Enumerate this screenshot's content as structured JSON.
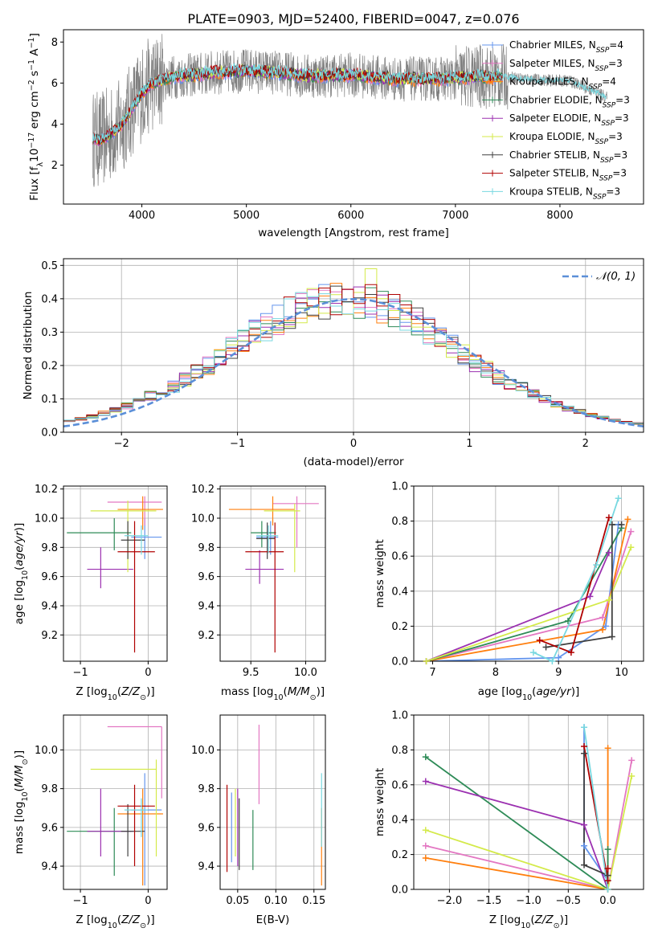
{
  "figure_title": "PLATE=0903, MJD=52400, FIBERID=0047, z=0.076",
  "models": [
    {
      "name": "Chabrier MILES",
      "nssp": "N",
      "sub": "SSP",
      "count": "=4",
      "color": "#6495ED"
    },
    {
      "name": "Salpeter MILES",
      "nssp": "N",
      "sub": "SSP",
      "count": "=3",
      "color": "#e377c2"
    },
    {
      "name": "Kroupa MILES",
      "nssp": "N",
      "sub": "SSP",
      "count": "=4",
      "color": "#ff7f0e"
    },
    {
      "name": "Chabrier ELODIE",
      "nssp": "N",
      "sub": "SSP",
      "count": "=3",
      "color": "#2e8b57"
    },
    {
      "name": "Salpeter ELODIE",
      "nssp": "N",
      "sub": "SSP",
      "count": "=3",
      "color": "#9b30b0"
    },
    {
      "name": "Kroupa ELODIE",
      "nssp": "N",
      "sub": "SSP",
      "count": "=3",
      "color": "#d4ea4a"
    },
    {
      "name": "Chabrier STELIB",
      "nssp": "N",
      "sub": "SSP",
      "count": "=3",
      "color": "#404040"
    },
    {
      "name": "Salpeter STELIB",
      "nssp": "N",
      "sub": "SSP",
      "count": "=3",
      "color": "#b00000"
    },
    {
      "name": "Kroupa STELIB",
      "nssp": "N",
      "sub": "SSP",
      "count": "=3",
      "color": "#78d8e0"
    }
  ],
  "chart_data": [
    {
      "id": "spectrum",
      "type": "line",
      "xlabel": "wavelength [Angstrom, rest frame]",
      "ylabel": "Flux [fλ10⁻¹⁷ erg cm⁻² s⁻¹ A⁻¹]",
      "xlim": [
        3250,
        8800
      ],
      "ylim": [
        0.1,
        8.6
      ],
      "xticks": [
        4000,
        5000,
        6000,
        7000,
        8000
      ],
      "yticks": [
        2,
        4,
        6,
        8
      ],
      "data_color": "#808080",
      "continuum": {
        "x": [
          3530,
          3600,
          3700,
          3800,
          3900,
          4000,
          4100,
          4300,
          4500,
          4700,
          5000,
          5300,
          5600,
          6000,
          6400,
          6800,
          7200,
          7500,
          7800,
          8100,
          8500
        ],
        "y": [
          3.3,
          3.2,
          3.5,
          3.9,
          4.7,
          5.5,
          6.0,
          6.3,
          6.4,
          6.5,
          6.6,
          6.5,
          6.35,
          6.4,
          6.2,
          6.2,
          6.3,
          6.3,
          6.15,
          6.1,
          5.2
        ]
      },
      "model_range": [
        3530,
        7450
      ],
      "data_range": [
        3530,
        8450
      ]
    },
    {
      "id": "residuals",
      "type": "line",
      "xlabel": "(data-model)/error",
      "ylabel": "Normed distribution",
      "xlim": [
        -2.5,
        2.5
      ],
      "ylim": [
        0,
        0.52
      ],
      "xticks": [
        -2,
        -1,
        0,
        1,
        2
      ],
      "yticks": [
        0.0,
        0.1,
        0.2,
        0.3,
        0.4,
        0.5
      ],
      "legend": "𝒩(0, 1)",
      "legend_color": "#5b8fd8",
      "bin_width": 0.1
    },
    {
      "id": "age_vs_Z",
      "type": "scatter",
      "xlabel": "Z [log10(Z/Z⊙)]",
      "ylabel": "age  [log10(age/yr)]",
      "xlim": [
        -1.25,
        0.28
      ],
      "ylim": [
        9.02,
        10.22
      ],
      "xticks": [
        -1,
        0
      ],
      "yticks": [
        9.2,
        9.4,
        9.6,
        9.8,
        10.0,
        10.2
      ],
      "points": [
        {
          "m": 0,
          "x": -0.05,
          "y": 9.87,
          "ex": [
            -0.25,
            0.2
          ],
          "ey": [
            9.72,
            10.0
          ]
        },
        {
          "m": 1,
          "x": -0.05,
          "y": 10.11,
          "ex": [
            -0.6,
            0.2
          ],
          "ey": [
            9.95,
            10.15
          ]
        },
        {
          "m": 2,
          "x": -0.08,
          "y": 10.06,
          "ex": [
            -0.45,
            0.22
          ],
          "ey": [
            9.92,
            10.15
          ]
        },
        {
          "m": 3,
          "x": -0.5,
          "y": 9.9,
          "ex": [
            -1.2,
            -0.25
          ],
          "ey": [
            9.78,
            10.0
          ]
        },
        {
          "m": 4,
          "x": -0.7,
          "y": 9.65,
          "ex": [
            -0.9,
            -0.22
          ],
          "ey": [
            9.52,
            9.8
          ]
        },
        {
          "m": 5,
          "x": -0.3,
          "y": 10.05,
          "ex": [
            -0.85,
            0.12
          ],
          "ey": [
            9.63,
            10.12
          ]
        },
        {
          "m": 6,
          "x": -0.3,
          "y": 9.85,
          "ex": [
            -0.4,
            -0.05
          ],
          "ey": [
            9.72,
            9.98
          ]
        },
        {
          "m": 7,
          "x": -0.2,
          "y": 9.77,
          "ex": [
            -0.45,
            0.1
          ],
          "ey": [
            9.08,
            9.98
          ]
        },
        {
          "m": 8,
          "x": -0.1,
          "y": 9.88,
          "ex": [
            -0.35,
            0.0
          ],
          "ey": [
            9.75,
            9.95
          ]
        }
      ]
    },
    {
      "id": "age_vs_mass",
      "type": "scatter",
      "xlabel": "mass [log10(M/M⊙)]",
      "ylabel": "",
      "xlim": [
        9.22,
        10.18
      ],
      "ylim": [
        9.02,
        10.22
      ],
      "xticks": [
        9.5,
        10.0
      ],
      "yticks": [
        9.2,
        9.4,
        9.6,
        9.8,
        10.0,
        10.2
      ],
      "points": [
        {
          "m": 0,
          "x": 9.68,
          "y": 9.87,
          "ex": [
            9.55,
            9.75
          ],
          "ey": [
            9.75,
            9.98
          ]
        },
        {
          "m": 1,
          "x": 9.92,
          "y": 10.1,
          "ex": [
            9.7,
            10.12
          ],
          "ey": [
            9.8,
            10.15
          ]
        },
        {
          "m": 2,
          "x": 9.7,
          "y": 10.06,
          "ex": [
            9.3,
            9.9
          ],
          "ey": [
            9.95,
            10.15
          ]
        },
        {
          "m": 3,
          "x": 9.6,
          "y": 9.9,
          "ex": [
            9.5,
            9.73
          ],
          "ey": [
            9.8,
            9.98
          ]
        },
        {
          "m": 4,
          "x": 9.58,
          "y": 9.65,
          "ex": [
            9.45,
            9.8
          ],
          "ey": [
            9.55,
            9.78
          ]
        },
        {
          "m": 5,
          "x": 9.9,
          "y": 10.05,
          "ex": [
            9.62,
            9.95
          ],
          "ey": [
            9.63,
            10.1
          ]
        },
        {
          "m": 6,
          "x": 9.65,
          "y": 9.86,
          "ex": [
            9.55,
            9.72
          ],
          "ey": [
            9.72,
            9.97
          ]
        },
        {
          "m": 7,
          "x": 9.72,
          "y": 9.77,
          "ex": [
            9.45,
            9.8
          ],
          "ey": [
            9.08,
            9.97
          ]
        },
        {
          "m": 8,
          "x": 9.66,
          "y": 9.88,
          "ex": [
            9.55,
            9.75
          ],
          "ey": [
            9.76,
            9.95
          ]
        }
      ]
    },
    {
      "id": "weight_vs_age",
      "type": "line",
      "xlabel": "age  [log10(age/yr)]",
      "ylabel": "mass weight",
      "xlim": [
        6.7,
        10.35
      ],
      "ylim": [
        0,
        1
      ],
      "xticks": [
        7,
        8,
        9,
        10
      ],
      "yticks": [
        0.0,
        0.2,
        0.4,
        0.6,
        0.8,
        1.0
      ],
      "series": [
        {
          "m": 0,
          "x": [
            6.9,
            9.0,
            9.75,
            9.95
          ],
          "y": [
            0.0,
            0.02,
            0.2,
            0.78
          ]
        },
        {
          "m": 1,
          "x": [
            6.9,
            9.7,
            10.15
          ],
          "y": [
            0.0,
            0.25,
            0.74
          ]
        },
        {
          "m": 2,
          "x": [
            6.9,
            9.7,
            10.1
          ],
          "y": [
            0.0,
            0.18,
            0.81
          ]
        },
        {
          "m": 3,
          "x": [
            6.9,
            9.15,
            10.0
          ],
          "y": [
            0.0,
            0.23,
            0.76
          ]
        },
        {
          "m": 4,
          "x": [
            6.9,
            9.5,
            9.8
          ],
          "y": [
            0.0,
            0.37,
            0.62
          ]
        },
        {
          "m": 5,
          "x": [
            6.9,
            9.8,
            10.15
          ],
          "y": [
            0.0,
            0.35,
            0.65
          ]
        },
        {
          "m": 6,
          "x": [
            8.8,
            9.85,
            9.85,
            10.0
          ],
          "y": [
            0.08,
            0.14,
            0.78,
            0.78
          ]
        },
        {
          "m": 7,
          "x": [
            8.7,
            9.2,
            9.8
          ],
          "y": [
            0.12,
            0.05,
            0.82
          ]
        },
        {
          "m": 8,
          "x": [
            8.6,
            8.9,
            9.6,
            9.95
          ],
          "y": [
            0.05,
            0.0,
            0.55,
            0.93
          ]
        }
      ]
    },
    {
      "id": "mass_vs_Z",
      "type": "scatter",
      "xlabel": "Z [log10(Z/Z⊙)]",
      "ylabel": "mass [log10(M/M⊙)]",
      "xlim": [
        -1.25,
        0.28
      ],
      "ylim": [
        9.28,
        10.18
      ],
      "xticks": [
        -1,
        0
      ],
      "yticks": [
        9.4,
        9.6,
        9.8,
        10.0
      ],
      "points": [
        {
          "m": 0,
          "x": -0.05,
          "y": 9.69,
          "ex": [
            -0.25,
            0.2
          ],
          "ey": [
            9.3,
            9.88
          ]
        },
        {
          "m": 1,
          "x": 0.2,
          "y": 10.12,
          "ex": [
            -0.6,
            0.2
          ],
          "ey": [
            9.75,
            10.12
          ]
        },
        {
          "m": 2,
          "x": -0.08,
          "y": 9.67,
          "ex": [
            -0.45,
            0.22
          ],
          "ey": [
            9.3,
            9.8
          ]
        },
        {
          "m": 3,
          "x": -0.5,
          "y": 9.58,
          "ex": [
            -1.2,
            -0.25
          ],
          "ey": [
            9.35,
            9.7
          ]
        },
        {
          "m": 4,
          "x": -0.7,
          "y": 9.58,
          "ex": [
            -0.9,
            -0.22
          ],
          "ey": [
            9.45,
            9.8
          ]
        },
        {
          "m": 5,
          "x": 0.12,
          "y": 9.9,
          "ex": [
            -0.85,
            0.12
          ],
          "ey": [
            9.45,
            9.95
          ]
        },
        {
          "m": 6,
          "x": -0.3,
          "y": 9.58,
          "ex": [
            -0.4,
            -0.05
          ],
          "ey": [
            9.45,
            9.72
          ]
        },
        {
          "m": 7,
          "x": -0.2,
          "y": 9.71,
          "ex": [
            -0.45,
            0.1
          ],
          "ey": [
            9.4,
            9.82
          ]
        },
        {
          "m": 8,
          "x": -0.1,
          "y": 9.69,
          "ex": [
            -0.35,
            0.0
          ],
          "ey": [
            9.55,
            9.75
          ]
        }
      ]
    },
    {
      "id": "mass_vs_EBV",
      "type": "scatter",
      "xlabel": "E(B-V)",
      "ylabel": "",
      "xlim": [
        0.027,
        0.165
      ],
      "ylim": [
        9.28,
        10.18
      ],
      "xticks": [
        0.05,
        0.1,
        0.15
      ],
      "yticks": [
        9.4,
        9.6,
        9.8,
        10.0
      ],
      "points": [
        {
          "m": 0,
          "x": 0.042,
          "y": 9.6,
          "ey": [
            9.42,
            9.78
          ]
        },
        {
          "m": 1,
          "x": 0.078,
          "y": 9.92,
          "ey": [
            9.72,
            10.13
          ]
        },
        {
          "m": 2,
          "x": 0.16,
          "y": 9.5,
          "ey": [
            9.3,
            9.7
          ]
        },
        {
          "m": 3,
          "x": 0.07,
          "y": 9.55,
          "ey": [
            9.38,
            9.69
          ]
        },
        {
          "m": 4,
          "x": 0.05,
          "y": 9.6,
          "ey": [
            9.4,
            9.8
          ]
        },
        {
          "m": 5,
          "x": 0.047,
          "y": 9.62,
          "ey": [
            9.45,
            9.8
          ]
        },
        {
          "m": 6,
          "x": 0.052,
          "y": 9.58,
          "ey": [
            9.38,
            9.75
          ]
        },
        {
          "m": 7,
          "x": 0.036,
          "y": 9.55,
          "ey": [
            9.37,
            9.82
          ]
        },
        {
          "m": 8,
          "x": 0.16,
          "y": 9.7,
          "ey": [
            9.5,
            9.88
          ]
        }
      ]
    },
    {
      "id": "weight_vs_Z",
      "type": "line",
      "xlabel": "Z [log10(Z/Z⊙)]",
      "ylabel": "mass weight",
      "xlim": [
        -2.45,
        0.45
      ],
      "ylim": [
        0,
        1
      ],
      "xticks": [
        -2.0,
        -1.5,
        -1.0,
        -0.5,
        0.0
      ],
      "yticks": [
        0.0,
        0.2,
        0.4,
        0.6,
        0.8,
        1.0
      ],
      "series": [
        {
          "m": 0,
          "x": [
            0.0,
            -0.3,
            -0.3
          ],
          "y": [
            0.05,
            0.25,
            0.93
          ]
        },
        {
          "m": 1,
          "x": [
            -2.3,
            0.0,
            0.3
          ],
          "y": [
            0.25,
            0.0,
            0.74
          ]
        },
        {
          "m": 2,
          "x": [
            -2.3,
            0.0,
            0.0
          ],
          "y": [
            0.18,
            0.0,
            0.81
          ]
        },
        {
          "m": 3,
          "x": [
            -2.3,
            0.0,
            0.0
          ],
          "y": [
            0.76,
            0.0,
            0.23
          ]
        },
        {
          "m": 4,
          "x": [
            -2.3,
            -0.3,
            0.0
          ],
          "y": [
            0.62,
            0.37,
            0.0
          ]
        },
        {
          "m": 5,
          "x": [
            -2.3,
            0.0,
            0.3
          ],
          "y": [
            0.34,
            0.0,
            0.65
          ]
        },
        {
          "m": 6,
          "x": [
            -0.3,
            -0.3,
            0.0
          ],
          "y": [
            0.78,
            0.14,
            0.08
          ]
        },
        {
          "m": 7,
          "x": [
            -0.3,
            0.0,
            0.0
          ],
          "y": [
            0.82,
            0.05,
            0.12
          ]
        },
        {
          "m": 8,
          "x": [
            -0.3,
            0.0
          ],
          "y": [
            0.93,
            0.0
          ]
        }
      ]
    }
  ]
}
